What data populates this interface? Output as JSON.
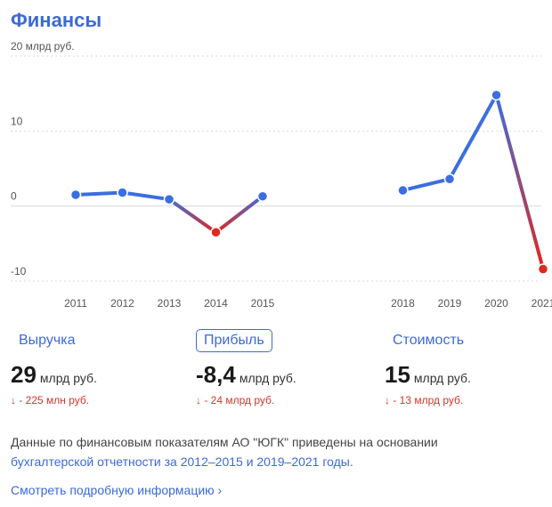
{
  "header": {
    "title": "Финансы"
  },
  "chart_data": {
    "type": "line",
    "ylabel": "",
    "unit": "млрд руб.",
    "ylim": [
      -10,
      20
    ],
    "yticks": [
      {
        "value": 20,
        "label": "20 млрд руб."
      },
      {
        "value": 10,
        "label": "10"
      },
      {
        "value": 0,
        "label": "0"
      },
      {
        "value": -10,
        "label": "-10"
      }
    ],
    "x": [
      2011,
      2012,
      2013,
      2014,
      2015,
      2018,
      2019,
      2020,
      2021
    ],
    "segments": [
      [
        0,
        1,
        2,
        3,
        4
      ],
      [
        5,
        6,
        7,
        8
      ]
    ],
    "series": [
      {
        "name": "",
        "values": [
          1.5,
          1.8,
          0.9,
          -3.5,
          1.3,
          2.1,
          3.6,
          14.8,
          -8.4
        ]
      }
    ],
    "colors": {
      "positive": "#3c6ee0",
      "negative": "#e0281e"
    }
  },
  "metrics": [
    {
      "label": "Выручка",
      "value": "29",
      "unit": "млрд руб.",
      "change": "↓ - 225 млн руб.",
      "active": false
    },
    {
      "label": "Прибыль",
      "value": "-8,4",
      "unit": "млрд руб.",
      "change": "↓ - 24 млрд руб.",
      "active": true
    },
    {
      "label": "Стоимость",
      "value": "15",
      "unit": "млрд руб.",
      "change": "↓ - 13 млрд руб.",
      "active": false
    }
  ],
  "note": {
    "text": "Данные по финансовым показателям АО \"ЮГК\" приведены на основании",
    "link": "бухгалтерской отчетности за 2012–2015 и 2019–2021 годы."
  },
  "more_link": "Смотреть подробную информацию ›"
}
